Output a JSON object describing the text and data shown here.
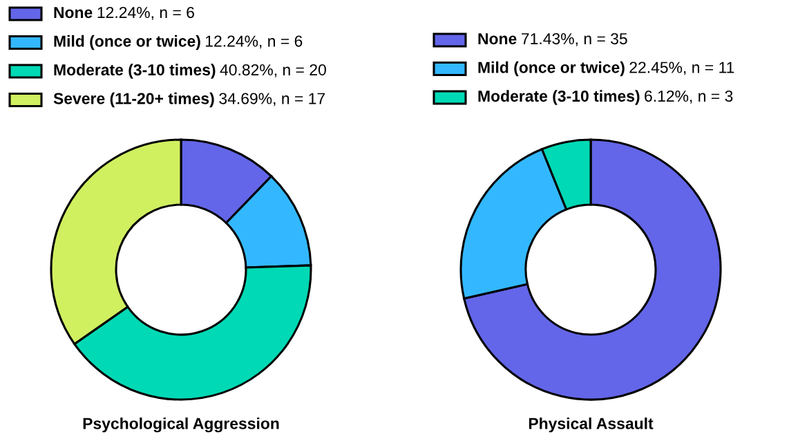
{
  "chart_data": [
    {
      "type": "donut",
      "title": "Psychological Aggression",
      "categories": [
        "None",
        "Mild (once or twice)",
        "Moderate (3-10 times)",
        "Severe (11-20+ times)"
      ],
      "values": [
        12.24,
        12.24,
        40.82,
        34.69
      ],
      "value_labels": [
        "12.24%, n = 6",
        "12.24%, n = 6",
        "40.82%, n = 20",
        "34.69%, n = 17"
      ],
      "colors": [
        "#6366e8",
        "#33b8ff",
        "#00d9b5",
        "#d0f060"
      ],
      "legend": "top left"
    },
    {
      "type": "donut",
      "title": "Physical Assault",
      "categories": [
        "None",
        "Mild (once or twice)",
        "Moderate (3-10 times)"
      ],
      "values": [
        71.43,
        22.45,
        6.12
      ],
      "value_labels": [
        "71.43%, n = 35",
        "22.45%, n = 11",
        "6.12%, n = 3"
      ],
      "colors": [
        "#6366e8",
        "#33b8ff",
        "#00d9b5"
      ],
      "legend": "top left"
    }
  ]
}
